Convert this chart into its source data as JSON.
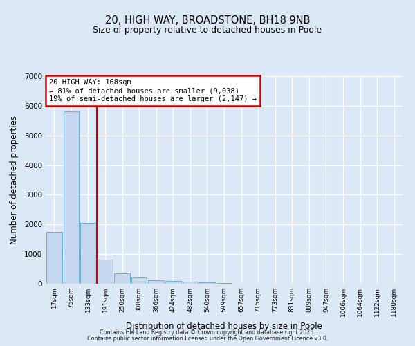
{
  "title": "20, HIGH WAY, BROADSTONE, BH18 9NB",
  "subtitle": "Size of property relative to detached houses in Poole",
  "xlabel": "Distribution of detached houses by size in Poole",
  "ylabel": "Number of detached properties",
  "bar_labels": [
    "17sqm",
    "75sqm",
    "133sqm",
    "191sqm",
    "250sqm",
    "308sqm",
    "366sqm",
    "424sqm",
    "482sqm",
    "540sqm",
    "599sqm",
    "657sqm",
    "715sqm",
    "773sqm",
    "831sqm",
    "889sqm",
    "947sqm",
    "1006sqm",
    "1064sqm",
    "1122sqm",
    "1180sqm"
  ],
  "bar_values": [
    1760,
    5800,
    2050,
    820,
    340,
    200,
    120,
    85,
    75,
    55,
    30,
    0,
    0,
    0,
    0,
    0,
    0,
    0,
    0,
    0,
    0
  ],
  "bar_color": "#c5d8ef",
  "bar_edge_color": "#6baed6",
  "background_color": "#dce8f5",
  "grid_color": "#ffffff",
  "annotation_text": "20 HIGH WAY: 168sqm\n← 81% of detached houses are smaller (9,038)\n19% of semi-detached houses are larger (2,147) →",
  "annotation_box_color": "#cc0000",
  "vline_color": "#cc0000",
  "ylim": [
    0,
    7000
  ],
  "yticks": [
    0,
    1000,
    2000,
    3000,
    4000,
    5000,
    6000,
    7000
  ],
  "footer_line1": "Contains HM Land Registry data © Crown copyright and database right 2025.",
  "footer_line2": "Contains public sector information licensed under the Open Government Licence v3.0."
}
